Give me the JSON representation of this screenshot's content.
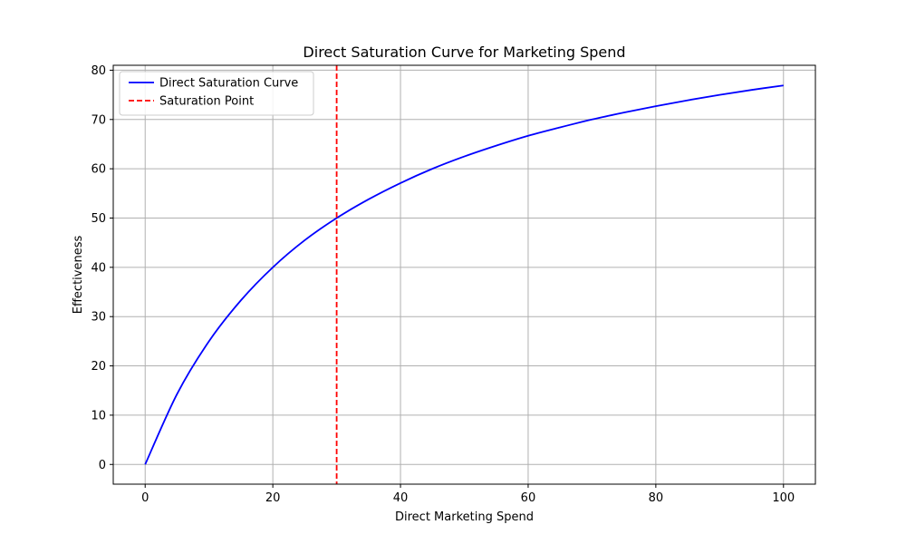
{
  "chart_data": {
    "type": "line",
    "title": "Direct Saturation Curve for Marketing Spend",
    "xlabel": "Direct Marketing Spend",
    "ylabel": "Effectiveness",
    "xlim": [
      -5,
      105
    ],
    "ylim": [
      -4,
      81
    ],
    "xticks": [
      0,
      20,
      40,
      60,
      80,
      100
    ],
    "yticks": [
      0,
      10,
      20,
      30,
      40,
      50,
      60,
      70,
      80
    ],
    "grid": true,
    "legend_position": "top-left",
    "series": [
      {
        "name": "Direct Saturation Curve",
        "color": "#0000ff",
        "style": "solid",
        "x": [
          0,
          5,
          10,
          15,
          20,
          25,
          30,
          35,
          40,
          45,
          50,
          55,
          60,
          65,
          70,
          75,
          80,
          85,
          90,
          95,
          100
        ],
        "y": [
          0,
          14.3,
          25.0,
          33.3,
          40.0,
          45.5,
          50.0,
          53.8,
          57.1,
          60.0,
          62.5,
          64.7,
          66.7,
          68.4,
          70.0,
          71.4,
          72.7,
          73.9,
          75.0,
          76.0,
          76.9
        ]
      }
    ],
    "reference_lines": [
      {
        "name": "Saturation Point",
        "orientation": "vertical",
        "x": 30,
        "color": "#ff0000",
        "style": "dashed"
      }
    ]
  }
}
